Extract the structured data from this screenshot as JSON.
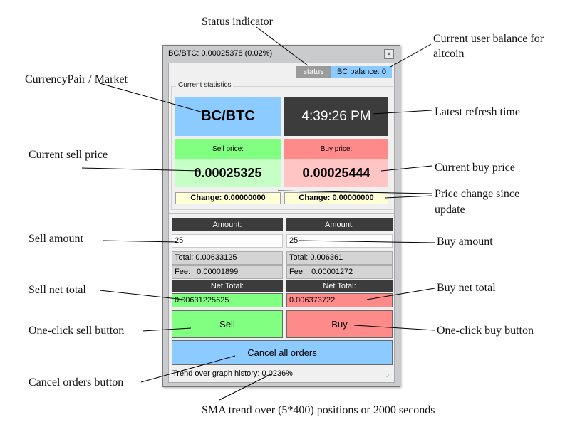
{
  "annotations": {
    "status_indicator": "Status indicator",
    "balance_line1": "Current user balance for",
    "balance_line2": "altcoin",
    "currency_pair": "CurrencyPair / Market",
    "refresh_time": "Latest refresh time",
    "sell_price": "Current sell price",
    "buy_price": "Current buy price",
    "price_change_line1": "Price change since",
    "price_change_line2": "update",
    "sell_amount": "Sell amount",
    "buy_amount": "Buy amount",
    "sell_net_total": "Sell net total",
    "buy_net_total": "Buy net total",
    "sell_button": "One-click sell button",
    "buy_button": "One-click buy button",
    "cancel_button": "Cancel orders button",
    "sma_trend": "SMA trend over (5*400) positions or 2000 seconds"
  },
  "window": {
    "title": "BC/BTC: 0.00025378 (0.02%)",
    "close_glyph": "x",
    "status": "status",
    "balance": "BC balance: 0",
    "group_label": "Current statistics",
    "pair": "BC/BTC",
    "time": "4:39:26 PM",
    "sell_price_label": "Sell price:",
    "sell_price": "0.00025325",
    "buy_price_label": "Buy price:",
    "buy_price": "0.00025444",
    "sell_change": "Change: 0.00000000",
    "buy_change": "Change: 0.00000000"
  },
  "sell": {
    "amount_label": "Amount:",
    "amount_value": "25",
    "total": "Total: 0.00633125",
    "fee": "Fee:   0.00001899",
    "net_label": "Net Total:",
    "net_value": "0.00631225625",
    "button": "Sell"
  },
  "buy": {
    "amount_label": "Amount:",
    "amount_value": "25",
    "total": "Total: 0.006361",
    "fee": "Fee:   0.00001272",
    "net_label": "Net Total:",
    "net_value": "0.006373722",
    "button": "Buy"
  },
  "cancel_button": "Cancel all orders",
  "trend": "Trend over graph history: 0.0236%",
  "colors": {
    "sell_green": "#80ff80",
    "buy_red": "#ff8a8a",
    "blue": "#8ccbff",
    "dark": "#3c3c3c"
  }
}
